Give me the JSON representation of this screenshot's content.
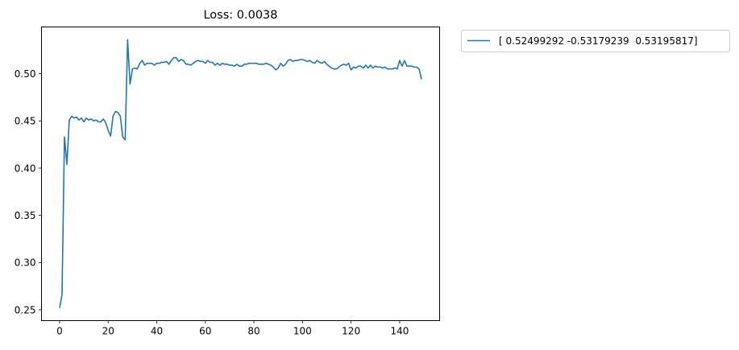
{
  "chart_data": {
    "type": "line",
    "title": "Loss: 0.0038",
    "xlabel": "",
    "ylabel": "",
    "xlim": [
      -7.45,
      156.45
    ],
    "ylim": [
      0.2385,
      0.5495
    ],
    "xticks": [
      0,
      20,
      40,
      60,
      80,
      100,
      120,
      140
    ],
    "yticks": [
      0.25,
      0.3,
      0.35,
      0.4,
      0.45,
      0.5
    ],
    "ytick_labels": [
      "0.25",
      "0.30",
      "0.35",
      "0.40",
      "0.45",
      "0.50"
    ],
    "grid": false,
    "legend_position": "outside-upper-right",
    "series": [
      {
        "name": "[ 0.52499292 -0.53179239  0.53195817]",
        "color": "#1f77b4",
        "x": [
          0,
          1,
          2,
          3,
          4,
          5,
          6,
          7,
          8,
          9,
          10,
          11,
          12,
          13,
          14,
          15,
          16,
          17,
          18,
          19,
          20,
          21,
          22,
          23,
          24,
          25,
          26,
          27,
          28,
          29,
          30,
          31,
          32,
          33,
          34,
          35,
          36,
          37,
          38,
          39,
          40,
          41,
          42,
          43,
          44,
          45,
          46,
          47,
          48,
          49,
          50,
          51,
          52,
          53,
          54,
          55,
          56,
          57,
          58,
          59,
          60,
          61,
          62,
          63,
          64,
          65,
          66,
          67,
          68,
          69,
          70,
          71,
          72,
          73,
          74,
          75,
          76,
          77,
          78,
          79,
          80,
          81,
          82,
          83,
          84,
          85,
          86,
          87,
          88,
          89,
          90,
          91,
          92,
          93,
          94,
          95,
          96,
          97,
          98,
          99,
          100,
          101,
          102,
          103,
          104,
          105,
          106,
          107,
          108,
          109,
          110,
          111,
          112,
          113,
          114,
          115,
          116,
          117,
          118,
          119,
          120,
          121,
          122,
          123,
          124,
          125,
          126,
          127,
          128,
          129,
          130,
          131,
          132,
          133,
          134,
          135,
          136,
          137,
          138,
          139,
          140,
          141,
          142,
          143,
          144,
          145,
          146,
          147,
          148,
          149
        ],
        "y": [
          0.252,
          0.266,
          0.433,
          0.404,
          0.451,
          0.455,
          0.453,
          0.454,
          0.451,
          0.453,
          0.449,
          0.453,
          0.451,
          0.452,
          0.45,
          0.451,
          0.449,
          0.449,
          0.452,
          0.448,
          0.44,
          0.434,
          0.455,
          0.46,
          0.459,
          0.455,
          0.433,
          0.43,
          0.536,
          0.489,
          0.505,
          0.506,
          0.505,
          0.511,
          0.514,
          0.509,
          0.511,
          0.511,
          0.511,
          0.509,
          0.511,
          0.511,
          0.512,
          0.512,
          0.513,
          0.51,
          0.514,
          0.517,
          0.517,
          0.513,
          0.515,
          0.514,
          0.51,
          0.51,
          0.509,
          0.511,
          0.513,
          0.514,
          0.513,
          0.513,
          0.511,
          0.514,
          0.512,
          0.512,
          0.509,
          0.511,
          0.509,
          0.511,
          0.51,
          0.51,
          0.509,
          0.509,
          0.508,
          0.51,
          0.508,
          0.508,
          0.51,
          0.51,
          0.511,
          0.511,
          0.511,
          0.511,
          0.51,
          0.51,
          0.51,
          0.511,
          0.51,
          0.509,
          0.507,
          0.504,
          0.506,
          0.511,
          0.508,
          0.51,
          0.514,
          0.515,
          0.513,
          0.514,
          0.514,
          0.515,
          0.515,
          0.514,
          0.513,
          0.514,
          0.512,
          0.511,
          0.514,
          0.512,
          0.511,
          0.513,
          0.51,
          0.508,
          0.506,
          0.505,
          0.505,
          0.507,
          0.509,
          0.51,
          0.509,
          0.511,
          0.504,
          0.507,
          0.506,
          0.508,
          0.508,
          0.506,
          0.509,
          0.506,
          0.509,
          0.506,
          0.508,
          0.507,
          0.507,
          0.506,
          0.507,
          0.505,
          0.505,
          0.505,
          0.506,
          0.505,
          0.514,
          0.508,
          0.514,
          0.508,
          0.508,
          0.508,
          0.507,
          0.507,
          0.505,
          0.494
        ]
      }
    ]
  }
}
